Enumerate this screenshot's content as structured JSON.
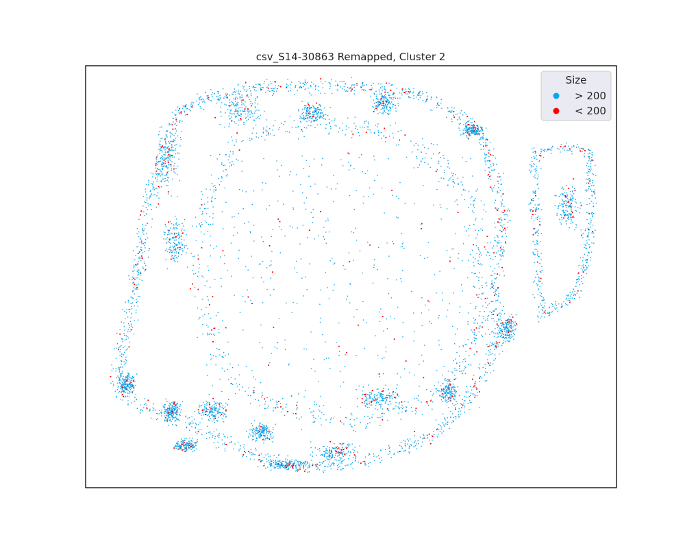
{
  "chart_data": {
    "type": "scatter",
    "title": "csv_S14-30863 Remapped, Cluster 2",
    "xlabel": "",
    "ylabel": "",
    "axes_visible": false,
    "grid": false,
    "legend": {
      "title": "Size",
      "placement": "top-right",
      "entries": [
        {
          "label": "> 200",
          "color": "#0ea5ec"
        },
        {
          "label": "< 200",
          "color": "#ff0000"
        }
      ]
    },
    "series": [
      {
        "name": "> 200",
        "color": "#0ea5ec",
        "share": 0.93
      },
      {
        "name": "< 200",
        "color": "#ff0000",
        "share": 0.07
      }
    ]
  }
}
